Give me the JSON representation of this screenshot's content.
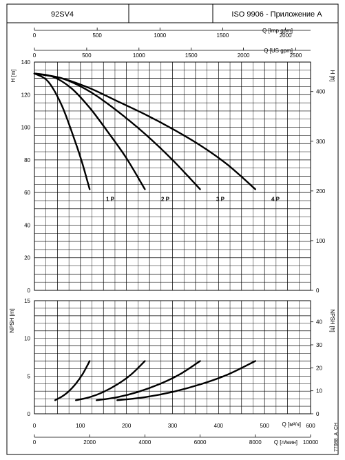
{
  "header": {
    "model": "92SV4",
    "middle": "",
    "standard": "ISO 9906 - Приложение A"
  },
  "drawing_code": "77088_A_CH",
  "chart_data": [
    {
      "type": "line",
      "name": "head",
      "ylabel_left": "H [m]",
      "ylabel_right": "H [ft]",
      "x_unit": "Q [м³/ч]",
      "xlim": [
        0,
        600
      ],
      "ylim": [
        0,
        140
      ],
      "ylim_ft": [
        0,
        459.3
      ],
      "grid": true,
      "y_ticks": [
        0,
        20,
        40,
        60,
        80,
        100,
        120,
        140
      ],
      "y_ticks_ft": [
        0,
        100,
        200,
        300,
        400
      ],
      "top_axes": [
        {
          "label": "Q [Imp gpm]",
          "ticks": [
            0,
            500,
            1000,
            1500,
            2000
          ],
          "per_m3h": 3.6662
        },
        {
          "label": "Q [US gpm]",
          "ticks": [
            0,
            500,
            1000,
            1500,
            2000,
            2500
          ],
          "per_m3h": 4.4029
        }
      ],
      "series": [
        {
          "name": "1 P",
          "x": [
            0,
            30,
            60,
            90,
            105,
            120
          ],
          "y": [
            133,
            128,
            113,
            90,
            77,
            62
          ]
        },
        {
          "name": "2 P",
          "x": [
            0,
            40,
            80,
            120,
            160,
            200,
            240
          ],
          "y": [
            133,
            131,
            124,
            112,
            97,
            81,
            62
          ]
        },
        {
          "name": "3 P",
          "x": [
            0,
            60,
            120,
            180,
            240,
            300,
            360
          ],
          "y": [
            133,
            130,
            122,
            110,
            96,
            80,
            62
          ]
        },
        {
          "name": "4 P",
          "x": [
            0,
            60,
            120,
            180,
            240,
            300,
            360,
            420,
            480
          ],
          "y": [
            133,
            130,
            124,
            116,
            108,
            99,
            89,
            77,
            62
          ]
        }
      ],
      "series_labels": [
        {
          "text": "1 P",
          "x": 88,
          "y": 61
        },
        {
          "text": "2 P",
          "x": 208,
          "y": 61
        },
        {
          "text": "3 P",
          "x": 328,
          "y": 61
        },
        {
          "text": "4 P",
          "x": 448,
          "y": 61
        }
      ]
    },
    {
      "type": "line",
      "name": "npsh",
      "ylabel_left": "NPSH [m]",
      "ylabel_right": "NPSH [ft]",
      "xlim": [
        0,
        600
      ],
      "ylim": [
        0,
        15
      ],
      "ylim_ft": [
        0,
        49.2
      ],
      "grid": true,
      "y_ticks": [
        0,
        5,
        10,
        15
      ],
      "y_ticks_ft": [
        0,
        10,
        20,
        30,
        40
      ],
      "x_ticks": [
        0,
        100,
        200,
        300,
        400,
        500,
        600
      ],
      "x_label": "Q [м³/ч]",
      "bottom_axis": {
        "label": "Q [л/мин]",
        "ticks": [
          0,
          2000,
          4000,
          6000,
          8000,
          10000
        ],
        "per_m3h": 16.667
      },
      "series": [
        {
          "name": "1 P",
          "x": [
            45,
            60,
            75,
            90,
            105,
            120
          ],
          "y": [
            1.8,
            2.3,
            3.0,
            4.0,
            5.3,
            7.0
          ]
        },
        {
          "name": "2 P",
          "x": [
            90,
            120,
            150,
            180,
            210,
            240
          ],
          "y": [
            1.8,
            2.2,
            2.9,
            3.9,
            5.2,
            7.0
          ]
        },
        {
          "name": "3 P",
          "x": [
            135,
            180,
            225,
            270,
            315,
            360
          ],
          "y": [
            1.8,
            2.2,
            2.9,
            3.9,
            5.2,
            7.0
          ]
        },
        {
          "name": "4 P",
          "x": [
            180,
            240,
            300,
            360,
            420,
            480
          ],
          "y": [
            1.8,
            2.2,
            2.9,
            3.9,
            5.2,
            7.0
          ]
        }
      ]
    }
  ]
}
